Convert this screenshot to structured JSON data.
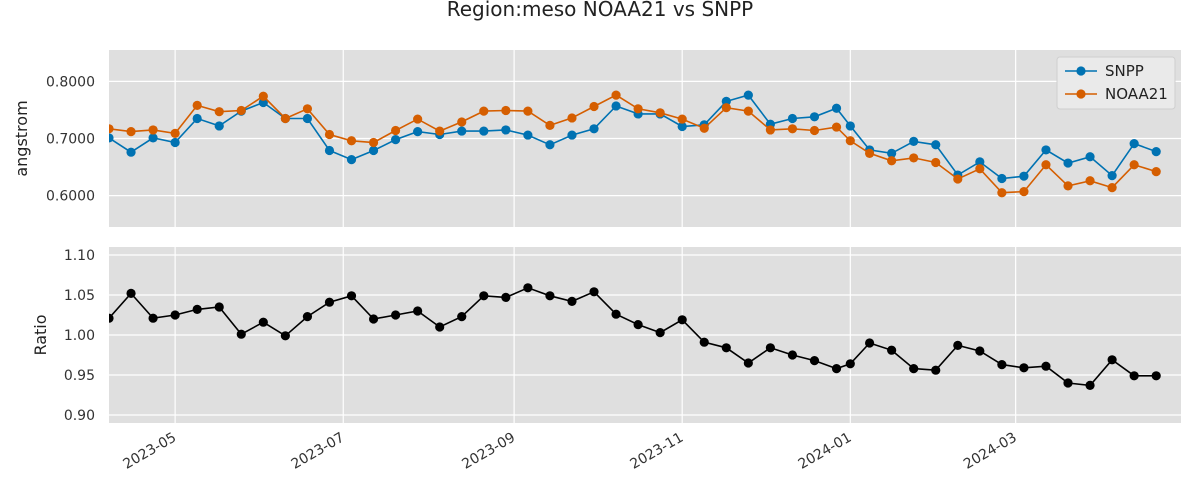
{
  "title": "Region:meso NOAA21 vs SNPP",
  "colors": {
    "snpp": "#0072B2",
    "noaa21": "#D55E00",
    "ratio": "#000000",
    "panel_bg": "#DFDFDF",
    "grid": "#FFFFFF"
  },
  "x_ticks": [
    "2023-05",
    "2023-07",
    "2023-09",
    "2023-11",
    "2024-01",
    "2024-03"
  ],
  "chart_data": [
    {
      "type": "line",
      "ylabel": "angstrom",
      "ylim": [
        0.545,
        0.855
      ],
      "yticks": [
        "0.6000",
        "0.7000",
        "0.8000"
      ],
      "xlim": [
        "2023-04-07",
        "2024-04-30"
      ],
      "grid": true,
      "legend": "top-right",
      "x": [
        "2023-04-07",
        "2023-04-15",
        "2023-04-23",
        "2023-05-01",
        "2023-05-09",
        "2023-05-17",
        "2023-05-25",
        "2023-06-02",
        "2023-06-10",
        "2023-06-18",
        "2023-06-26",
        "2023-07-04",
        "2023-07-12",
        "2023-07-20",
        "2023-07-28",
        "2023-08-05",
        "2023-08-13",
        "2023-08-21",
        "2023-08-29",
        "2023-09-06",
        "2023-09-14",
        "2023-09-22",
        "2023-09-30",
        "2023-10-08",
        "2023-10-16",
        "2023-10-24",
        "2023-11-01",
        "2023-11-09",
        "2023-11-17",
        "2023-11-25",
        "2023-12-03",
        "2023-12-11",
        "2023-12-19",
        "2023-12-27",
        "2024-01-01",
        "2024-01-08",
        "2024-01-16",
        "2024-01-24",
        "2024-02-01",
        "2024-02-09",
        "2024-02-17",
        "2024-02-25",
        "2024-03-04",
        "2024-03-12",
        "2024-03-20",
        "2024-03-28",
        "2024-04-05",
        "2024-04-13",
        "2024-04-21"
      ],
      "series": [
        {
          "name": "SNPP",
          "values": [
            0.701,
            0.676,
            0.701,
            0.693,
            0.735,
            0.722,
            0.748,
            0.763,
            0.735,
            0.735,
            0.679,
            0.663,
            0.679,
            0.698,
            0.712,
            0.707,
            0.713,
            0.713,
            0.715,
            0.706,
            0.689,
            0.706,
            0.717,
            0.757,
            0.743,
            0.743,
            0.721,
            0.724,
            0.765,
            0.776,
            0.725,
            0.735,
            0.738,
            0.753,
            0.722,
            0.68,
            0.674,
            0.695,
            0.689,
            0.636,
            0.659,
            0.63,
            0.634,
            0.68,
            0.657,
            0.668,
            0.635,
            0.691,
            0.677
          ]
        },
        {
          "name": "NOAA21",
          "values": [
            0.717,
            0.712,
            0.715,
            0.709,
            0.758,
            0.747,
            0.749,
            0.774,
            0.735,
            0.752,
            0.707,
            0.696,
            0.693,
            0.714,
            0.734,
            0.713,
            0.729,
            0.748,
            0.749,
            0.748,
            0.723,
            0.736,
            0.756,
            0.776,
            0.752,
            0.745,
            0.734,
            0.718,
            0.754,
            0.748,
            0.715,
            0.717,
            0.714,
            0.72,
            0.696,
            0.674,
            0.661,
            0.666,
            0.658,
            0.629,
            0.647,
            0.605,
            0.607,
            0.654,
            0.617,
            0.626,
            0.614,
            0.654,
            0.642
          ]
        }
      ]
    },
    {
      "type": "line",
      "ylabel": "Ratio",
      "ylim": [
        0.89,
        1.11
      ],
      "yticks": [
        "0.90",
        "0.95",
        "1.00",
        "1.05",
        "1.10"
      ],
      "xlim": [
        "2023-04-07",
        "2024-04-30"
      ],
      "grid": true,
      "x": [
        "2023-04-07",
        "2023-04-15",
        "2023-04-23",
        "2023-05-01",
        "2023-05-09",
        "2023-05-17",
        "2023-05-25",
        "2023-06-02",
        "2023-06-10",
        "2023-06-18",
        "2023-06-26",
        "2023-07-04",
        "2023-07-12",
        "2023-07-20",
        "2023-07-28",
        "2023-08-05",
        "2023-08-13",
        "2023-08-21",
        "2023-08-29",
        "2023-09-06",
        "2023-09-14",
        "2023-09-22",
        "2023-09-30",
        "2023-10-08",
        "2023-10-16",
        "2023-10-24",
        "2023-11-01",
        "2023-11-09",
        "2023-11-17",
        "2023-11-25",
        "2023-12-03",
        "2023-12-11",
        "2023-12-19",
        "2023-12-27",
        "2024-01-01",
        "2024-01-08",
        "2024-01-16",
        "2024-01-24",
        "2024-02-01",
        "2024-02-09",
        "2024-02-17",
        "2024-02-25",
        "2024-03-04",
        "2024-03-12",
        "2024-03-20",
        "2024-03-28",
        "2024-04-05",
        "2024-04-13",
        "2024-04-21"
      ],
      "series": [
        {
          "values": [
            1.021,
            1.052,
            1.021,
            1.025,
            1.032,
            1.035,
            1.001,
            1.016,
            0.999,
            1.023,
            1.041,
            1.049,
            1.02,
            1.025,
            1.03,
            1.01,
            1.023,
            1.049,
            1.047,
            1.059,
            1.049,
            1.042,
            1.054,
            1.026,
            1.013,
            1.003,
            1.019,
            0.991,
            0.984,
            0.965,
            0.984,
            0.975,
            0.968,
            0.958,
            0.964,
            0.99,
            0.981,
            0.958,
            0.956,
            0.987,
            0.98,
            0.963,
            0.959,
            0.961,
            0.94,
            0.937,
            0.969,
            0.949,
            0.949
          ]
        }
      ]
    }
  ]
}
